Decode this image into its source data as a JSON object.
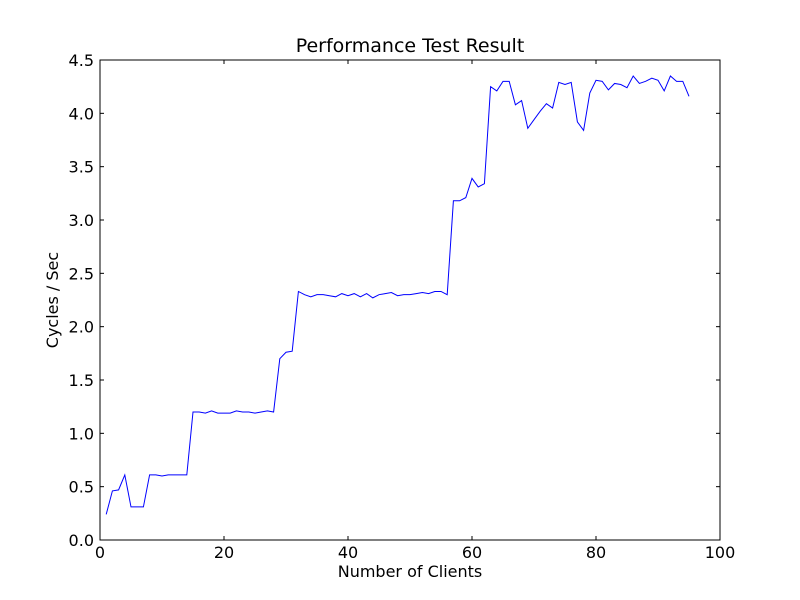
{
  "chart_data": {
    "type": "line",
    "title": "Performance Test Result",
    "xlabel": "Number of Clients",
    "ylabel": "Cycles / Sec",
    "xlim": [
      0,
      100
    ],
    "ylim": [
      0.0,
      4.5
    ],
    "x_ticks": [
      "0",
      "20",
      "40",
      "60",
      "80",
      "100"
    ],
    "y_ticks": [
      "0.0",
      "0.5",
      "1.0",
      "1.5",
      "2.0",
      "2.5",
      "3.0",
      "3.5",
      "4.0",
      "4.5"
    ],
    "grid": false,
    "line_color": "#0000ff",
    "series": [
      {
        "x": [
          1,
          2,
          3,
          4,
          5,
          6,
          7,
          8,
          9,
          10,
          11,
          12,
          13,
          14,
          15,
          16,
          17,
          18,
          19,
          20,
          21,
          22,
          23,
          24,
          25,
          26,
          27,
          28,
          29,
          30,
          31,
          32,
          33,
          34,
          35,
          36,
          37,
          38,
          39,
          40,
          41,
          42,
          43,
          44,
          45,
          46,
          47,
          48,
          49,
          50,
          51,
          52,
          53,
          54,
          55,
          56,
          57,
          58,
          59,
          60,
          61,
          62,
          63,
          64,
          65,
          66,
          67,
          68,
          69,
          70,
          71,
          72,
          73,
          74,
          75,
          76,
          77,
          78,
          79,
          80,
          81,
          82,
          83,
          84,
          85,
          86,
          87,
          88,
          89,
          90,
          91,
          92,
          93,
          94,
          95
        ],
        "values": [
          0.24,
          0.46,
          0.47,
          0.61,
          0.31,
          0.31,
          0.31,
          0.61,
          0.61,
          0.6,
          0.61,
          0.61,
          0.61,
          0.61,
          1.2,
          1.2,
          1.19,
          1.21,
          1.19,
          1.19,
          1.19,
          1.21,
          1.2,
          1.2,
          1.19,
          1.2,
          1.21,
          1.2,
          1.7,
          1.76,
          1.77,
          2.33,
          2.3,
          2.28,
          2.3,
          2.3,
          2.29,
          2.28,
          2.31,
          2.29,
          2.31,
          2.28,
          2.31,
          2.27,
          2.3,
          2.31,
          2.32,
          2.29,
          2.3,
          2.3,
          2.31,
          2.32,
          2.31,
          2.33,
          2.33,
          2.3,
          3.18,
          3.18,
          3.21,
          3.39,
          3.31,
          3.34,
          4.25,
          4.21,
          4.3,
          4.3,
          4.08,
          4.12,
          3.86,
          3.94,
          4.02,
          4.09,
          4.05,
          4.29,
          4.27,
          4.29,
          3.92,
          3.84,
          4.19,
          4.31,
          4.3,
          4.22,
          4.28,
          4.27,
          4.24,
          4.35,
          4.28,
          4.3,
          4.33,
          4.31,
          4.21,
          4.35,
          4.3,
          4.3,
          4.16
        ]
      }
    ]
  }
}
